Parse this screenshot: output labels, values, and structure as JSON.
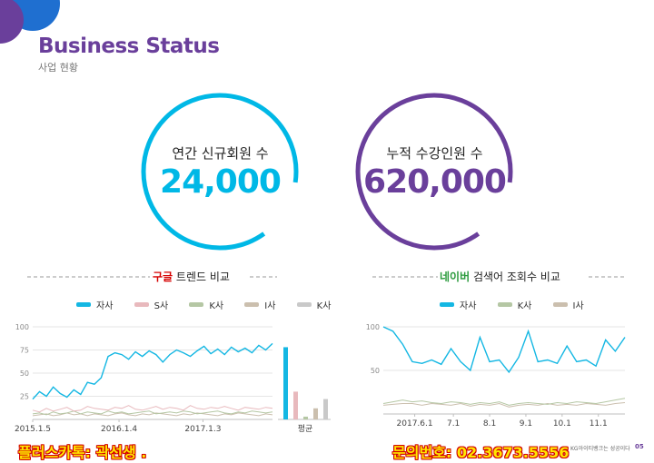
{
  "header": {
    "title": "Business Status",
    "subtitle": "사업 현황"
  },
  "stats": [
    {
      "label": "연간 신규회원 수",
      "value": "24,000",
      "color": "#00b8e6"
    },
    {
      "label": "누적 수강인원 수",
      "value": "620,000",
      "color": "#6a3f9b"
    }
  ],
  "google_section": {
    "title_brand": "구글",
    "title_rest": " 트렌드 비교",
    "brand_color": "#d60000",
    "legend": [
      {
        "name": "자사",
        "color": "#14b7e3"
      },
      {
        "name": "S사",
        "color": "#e8b9bd"
      },
      {
        "name": "K사",
        "color": "#b5c7a4"
      },
      {
        "name": "I사",
        "color": "#cbbfae"
      },
      {
        "name": "K사",
        "color": "#c9c9c9"
      }
    ]
  },
  "naver_section": {
    "title_brand": "네이버",
    "title_rest": " 검색어 조회수 비교",
    "brand_color": "#2a9a3c",
    "legend": [
      {
        "name": "자사",
        "color": "#14b7e3"
      },
      {
        "name": "K사",
        "color": "#b5c7a4"
      },
      {
        "name": "I사",
        "color": "#cbbfae"
      }
    ]
  },
  "chart_data": [
    {
      "type": "line",
      "y_ticks": [
        25,
        50,
        75,
        100
      ],
      "ylim": [
        0,
        100
      ],
      "x_tick_labels": [
        "2015.1.5",
        "2016.1.4",
        "2017.1.3"
      ],
      "grid": true,
      "series": [
        {
          "name": "자사",
          "color": "#14b7e3",
          "values": [
            22,
            30,
            25,
            35,
            28,
            24,
            32,
            27,
            40,
            38,
            45,
            68,
            72,
            70,
            65,
            73,
            68,
            74,
            70,
            62,
            70,
            75,
            72,
            68,
            74,
            79,
            71,
            76,
            70,
            78,
            73,
            77,
            72,
            80,
            75,
            82
          ]
        },
        {
          "name": "S사",
          "color": "#e8b9bd",
          "values": [
            10,
            8,
            12,
            9,
            11,
            13,
            9,
            10,
            14,
            12,
            11,
            10,
            13,
            12,
            15,
            11,
            10,
            12,
            14,
            11,
            13,
            12,
            10,
            15,
            12,
            11,
            13,
            12,
            14,
            12,
            10,
            13,
            12,
            11,
            13,
            12
          ]
        },
        {
          "name": "K사",
          "color": "#b5c7a4",
          "values": [
            6,
            7,
            5,
            8,
            6,
            7,
            9,
            6,
            8,
            7,
            6,
            9,
            7,
            8,
            6,
            7,
            8,
            9,
            6,
            7,
            8,
            7,
            9,
            8,
            6,
            7,
            8,
            9,
            7,
            6,
            8,
            7,
            9,
            8,
            7,
            8
          ]
        },
        {
          "name": "I사",
          "color": "#cbbfae",
          "values": [
            4,
            5,
            6,
            4,
            5,
            7,
            5,
            6,
            4,
            6,
            5,
            4,
            6,
            7,
            5,
            4,
            6,
            5,
            7,
            6,
            5,
            4,
            6,
            5,
            7,
            6,
            5,
            4,
            6,
            5,
            7,
            6,
            5,
            4,
            6,
            5
          ]
        }
      ],
      "average_bars": {
        "label": "평균",
        "values": [
          {
            "name": "자사",
            "color": "#14b7e3",
            "value": 78
          },
          {
            "name": "S사",
            "color": "#e8b9bd",
            "value": 30
          },
          {
            "name": "K사",
            "color": "#b5c7a4",
            "value": 3
          },
          {
            "name": "I사",
            "color": "#cbbfae",
            "value": 12
          },
          {
            "name": "K사",
            "color": "#c9c9c9",
            "value": 22
          }
        ]
      }
    },
    {
      "type": "line",
      "y_ticks": [
        50,
        100
      ],
      "ylim": [
        0,
        100
      ],
      "x_tick_labels": [
        "2017.6.1",
        "7.1",
        "8.1",
        "9.1",
        "10.1",
        "11.1"
      ],
      "grid": true,
      "series": [
        {
          "name": "자사",
          "color": "#14b7e3",
          "values": [
            100,
            95,
            80,
            60,
            58,
            62,
            57,
            75,
            60,
            50,
            88,
            60,
            62,
            48,
            65,
            95,
            60,
            62,
            58,
            78,
            60,
            62,
            55,
            85,
            72,
            88
          ]
        },
        {
          "name": "K사",
          "color": "#b5c7a4",
          "values": [
            12,
            14,
            16,
            14,
            15,
            13,
            12,
            14,
            13,
            11,
            13,
            12,
            14,
            10,
            12,
            13,
            12,
            11,
            13,
            12,
            14,
            13,
            12,
            14,
            16,
            18
          ]
        },
        {
          "name": "I사",
          "color": "#cbbfae",
          "values": [
            10,
            11,
            12,
            12,
            10,
            12,
            11,
            10,
            12,
            9,
            11,
            10,
            12,
            8,
            10,
            11,
            10,
            12,
            10,
            11,
            10,
            12,
            11,
            10,
            12,
            13
          ]
        }
      ]
    }
  ],
  "footer": {
    "left": "플러스카톡: 곽선생 .",
    "right": "문의번호: 02.3673.5556",
    "small_text": "KG아이티뱅크는 성공이다",
    "page_number": "05"
  }
}
